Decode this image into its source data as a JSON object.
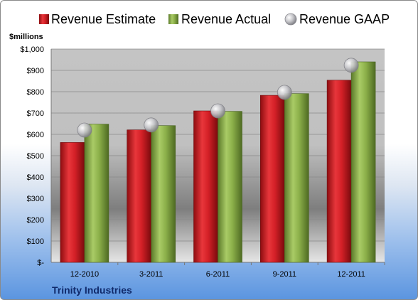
{
  "chart_data": {
    "type": "bar",
    "title": "",
    "unit_label": "$millions",
    "footer": "Trinity Industries",
    "categories": [
      "12-2010",
      "3-2011",
      "6-2011",
      "9-2011",
      "12-2011"
    ],
    "series": [
      {
        "name": "Revenue Estimate",
        "type": "bar",
        "color": "#d42027",
        "values": [
          562,
          621,
          710,
          783,
          854
        ]
      },
      {
        "name": "Revenue Actual",
        "type": "bar",
        "color": "#8cb04a",
        "values": [
          648,
          641,
          708,
          791,
          940
        ]
      },
      {
        "name": "Revenue GAAP",
        "type": "scatter",
        "color": "#b4b4b8",
        "values": [
          620,
          644,
          710,
          797,
          924
        ]
      }
    ],
    "ylim": [
      0,
      1000
    ],
    "yticks": [
      0,
      100,
      200,
      300,
      400,
      500,
      600,
      700,
      800,
      900,
      1000
    ],
    "ytick_labels": [
      "$-",
      "$100",
      "$200",
      "$300",
      "$400",
      "$500",
      "$600",
      "$700",
      "$800",
      "$900",
      "$1,000"
    ],
    "grid": true,
    "legend": "top"
  }
}
